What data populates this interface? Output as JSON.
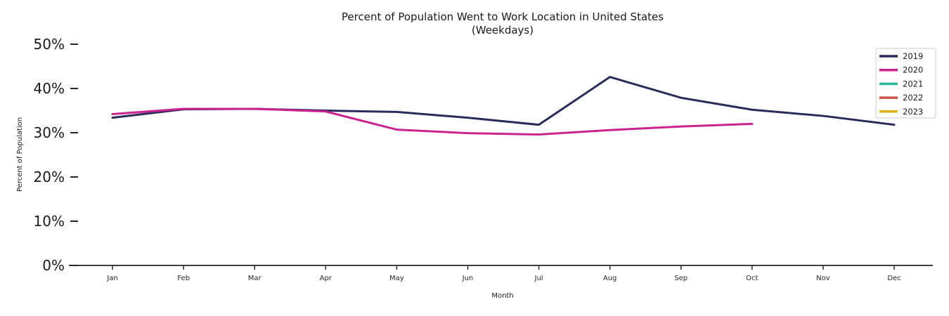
{
  "chart_data": {
    "type": "line",
    "title": "Percent of Population Went to Work Location in United States",
    "subtitle": "(Weekdays)",
    "xlabel": "Month",
    "ylabel": "Percent of Population",
    "categories": [
      "Jan",
      "Feb",
      "Mar",
      "Apr",
      "May",
      "Jun",
      "Jul",
      "Aug",
      "Sep",
      "Oct",
      "Nov",
      "Dec"
    ],
    "ylim": [
      0,
      50
    ],
    "ytick_values": [
      0,
      10,
      20,
      30,
      40,
      50
    ],
    "ytick_labels": [
      "0%",
      "10%",
      "20%",
      "30%",
      "40%",
      "50%"
    ],
    "grid": false,
    "legend_position": "upper right",
    "unit": "percent of population",
    "series": [
      {
        "name": "2019",
        "color": "#282c5a",
        "values": [
          33.4,
          35.3,
          35.4,
          35.0,
          34.7,
          33.4,
          31.8,
          42.6,
          37.9,
          35.2,
          33.8,
          31.8
        ]
      },
      {
        "name": "2020",
        "color": "#ca2390",
        "values": [
          34.2,
          35.4,
          35.4,
          34.8,
          30.7,
          29.9,
          29.6,
          30.6,
          31.4,
          32.0,
          null,
          null
        ]
      },
      {
        "name": "2021",
        "color": "#2eb79b",
        "values": [
          null,
          null,
          null,
          null,
          null,
          null,
          null,
          null,
          null,
          null,
          null,
          null
        ]
      },
      {
        "name": "2022",
        "color": "#cd544a",
        "values": [
          null,
          null,
          null,
          null,
          null,
          null,
          null,
          null,
          null,
          null,
          null,
          null
        ]
      },
      {
        "name": "2023",
        "color": "#ddb214",
        "values": [
          null,
          null,
          null,
          null,
          null,
          null,
          null,
          null,
          null,
          null,
          null,
          null
        ]
      }
    ]
  },
  "colors": {
    "axis": "#262626",
    "tick_text": "#1a1a1a",
    "legend_border": "#c9c9c9",
    "background": "#ffffff"
  }
}
